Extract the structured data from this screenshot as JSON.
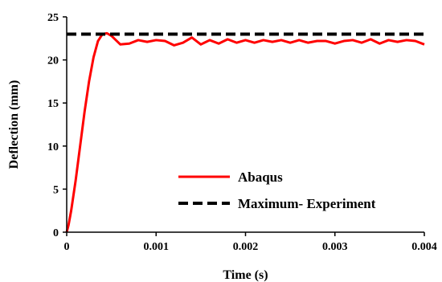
{
  "chart_data": {
    "type": "line",
    "xlabel": "Time (s)",
    "ylabel": "Deflection (mm)",
    "xlim": [
      0,
      0.004
    ],
    "ylim": [
      0,
      25
    ],
    "x_ticks": [
      0,
      0.001,
      0.002,
      0.003,
      0.004
    ],
    "x_tick_labels": [
      "0",
      "0.001",
      "0.002",
      "0.003",
      "0.004"
    ],
    "y_ticks": [
      0,
      5,
      10,
      15,
      20,
      25
    ],
    "y_tick_labels": [
      "0",
      "5",
      "10",
      "15",
      "20",
      "25"
    ],
    "grid": false,
    "legend_position": "lower-right",
    "series": [
      {
        "name": "Abaqus",
        "color": "#ff0000",
        "style": "solid",
        "x": [
          0,
          2e-05,
          5e-05,
          0.0001,
          0.00015,
          0.0002,
          0.00025,
          0.0003,
          0.00035,
          0.0004,
          0.00045,
          0.0005,
          0.00055,
          0.0006,
          0.0007,
          0.0008,
          0.0009,
          0.001,
          0.0011,
          0.0012,
          0.0013,
          0.0014,
          0.0015,
          0.0016,
          0.0017,
          0.0018,
          0.0019,
          0.002,
          0.0021,
          0.0022,
          0.0023,
          0.0024,
          0.0025,
          0.0026,
          0.0027,
          0.0028,
          0.0029,
          0.003,
          0.0031,
          0.0032,
          0.0033,
          0.0034,
          0.0035,
          0.0036,
          0.0037,
          0.0038,
          0.0039,
          0.004
        ],
        "y": [
          0,
          0.8,
          2.5,
          6.0,
          10.0,
          14.0,
          17.5,
          20.3,
          22.2,
          23.0,
          23.1,
          22.8,
          22.3,
          21.8,
          21.9,
          22.3,
          22.1,
          22.3,
          22.2,
          21.7,
          22.0,
          22.6,
          21.8,
          22.3,
          21.9,
          22.4,
          22.0,
          22.3,
          22.0,
          22.3,
          22.1,
          22.3,
          22.0,
          22.3,
          22.0,
          22.2,
          22.2,
          21.9,
          22.2,
          22.3,
          22.0,
          22.4,
          21.9,
          22.3,
          22.1,
          22.3,
          22.2,
          21.8
        ]
      },
      {
        "name": "Maximum- Experiment",
        "color": "#000000",
        "style": "dashed",
        "x": [
          0,
          0.004
        ],
        "y": [
          23,
          23
        ]
      }
    ]
  }
}
